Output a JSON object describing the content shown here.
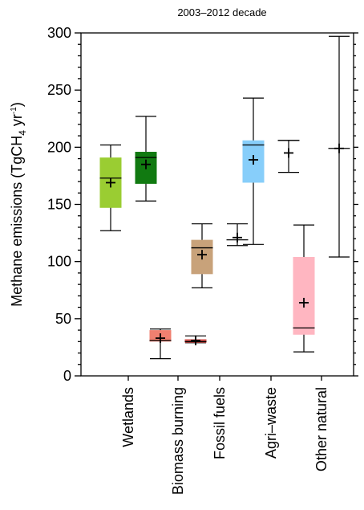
{
  "chart_data": {
    "type": "boxplot",
    "title": "2003–2012 decade",
    "ylabel": {
      "text": "Methane emissions (TgCH",
      "sub": "4",
      "mid": " yr",
      "sup": "-1",
      "end": ")"
    },
    "ylim": [
      0,
      300
    ],
    "yticks": [
      "0",
      "50",
      "100",
      "150",
      "200",
      "250",
      "300"
    ],
    "yminor_step": 10,
    "categories": [
      "Wetlands",
      "Biomass burning",
      "Fossil fuels",
      "Agri–waste",
      "Other natural"
    ],
    "boxes": [
      {
        "category": "Wetlands",
        "variant": "box",
        "color": "#9acd32",
        "whisker_low": 127,
        "q1": 147,
        "median": 173,
        "q3": 191,
        "whisker_high": 202,
        "mean": 169
      },
      {
        "category": "Wetlands",
        "variant": "box",
        "color": "#117a11",
        "whisker_low": 153,
        "q1": 168,
        "median": 191,
        "q3": 196,
        "whisker_high": 227,
        "mean": 185
      },
      {
        "category": "Biomass burning",
        "variant": "box",
        "color": "#f08070",
        "whisker_low": 15,
        "q1": 30,
        "median": 31,
        "q3": 40,
        "whisker_high": 41,
        "mean": 33
      },
      {
        "category": "Biomass burning",
        "variant": "box",
        "color": "#d9534f",
        "whisker_low": 29,
        "q1": 29,
        "median": 30,
        "q3": 32,
        "whisker_high": 35,
        "mean": 31
      },
      {
        "category": "Fossil fuels",
        "variant": "box",
        "color": "#c8a27a",
        "whisker_low": 77,
        "q1": 89,
        "median": 112,
        "q3": 119,
        "whisker_high": 133,
        "mean": 106
      },
      {
        "category": "Fossil fuels",
        "variant": "range",
        "whisker_low": 114,
        "median": 119,
        "whisker_high": 133,
        "mean": 121
      },
      {
        "category": "Agri–waste",
        "variant": "box",
        "color": "#87cefa",
        "whisker_low": 115,
        "q1": 169,
        "median": 202,
        "q3": 206,
        "whisker_high": 243,
        "mean": 189
      },
      {
        "category": "Agri–waste",
        "variant": "range",
        "whisker_low": 178,
        "median": 206,
        "whisker_high": 206,
        "mean": 195
      },
      {
        "category": "Other natural",
        "variant": "box",
        "color": "#ffb6c1",
        "whisker_low": 21,
        "q1": 36,
        "median": 42,
        "q3": 104,
        "whisker_high": 132,
        "mean": 64
      },
      {
        "category": "Other natural",
        "variant": "range",
        "whisker_low": 104,
        "median": 199,
        "whisker_high": 297,
        "mean": 199
      }
    ]
  }
}
